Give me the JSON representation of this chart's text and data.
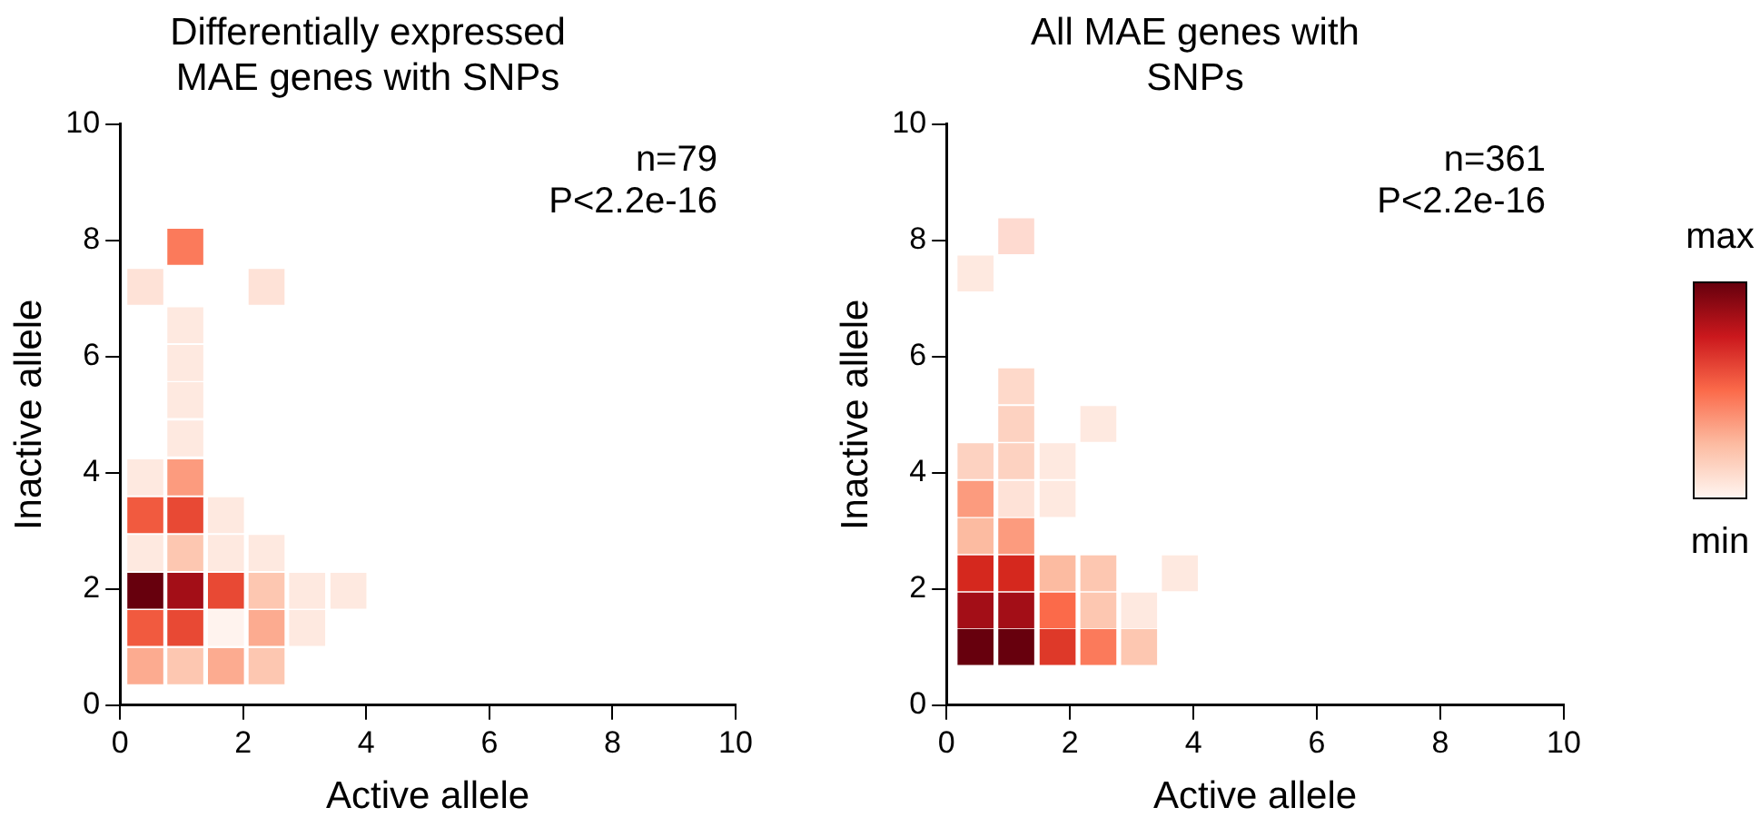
{
  "chart_data": [
    {
      "type": "scatter",
      "title": "Differentially expressed\nMAE genes with SNPs",
      "xlabel": "Active allele",
      "ylabel": "Inactive allele",
      "marker": "square",
      "grid": false,
      "legend": false,
      "xlim": [
        0,
        10
      ],
      "ylim": [
        0,
        10
      ],
      "xticks": [
        0,
        2,
        4,
        6,
        8,
        10
      ],
      "yticks": [
        0,
        2,
        4,
        6,
        8,
        10
      ],
      "annotations": [
        "n=79",
        "P<2.2e-16"
      ],
      "x": [
        0.41,
        1.06,
        1.72,
        2.38,
        0.41,
        1.06,
        1.72,
        2.38,
        3.04,
        0.41,
        1.06,
        1.72,
        2.38,
        3.04,
        3.71,
        0.41,
        1.06,
        1.72,
        2.38,
        0.41,
        1.06,
        1.72,
        0.41,
        1.06,
        1.06,
        1.06,
        1.06,
        1.06,
        0.41,
        2.38,
        1.06
      ],
      "values": [
        0.67,
        0.67,
        0.67,
        0.67,
        1.33,
        1.33,
        1.33,
        1.33,
        1.33,
        1.97,
        1.97,
        1.97,
        1.97,
        1.97,
        1.97,
        2.62,
        2.62,
        2.62,
        2.62,
        3.27,
        3.27,
        3.27,
        3.92,
        3.92,
        4.59,
        5.25,
        5.89,
        6.54,
        7.2,
        7.2,
        7.89
      ],
      "colors": [
        "#fcab90",
        "#fdc7b1",
        "#fcab90",
        "#fdc7b1",
        "#f15a3f",
        "#e84934",
        "#fff3ee",
        "#fcab90",
        "#fee9e0",
        "#67000d",
        "#a30e17",
        "#e84934",
        "#fdc7b1",
        "#fee9e0",
        "#fee9e0",
        "#fee9e0",
        "#fdc7b1",
        "#fee9e0",
        "#fee9e0",
        "#f15a3f",
        "#e84934",
        "#fee9e0",
        "#fee9e0",
        "#fc9b7e",
        "#fee9e0",
        "#fee9e0",
        "#fee9e0",
        "#fee9e0",
        "#fee2d7",
        "#fee2d7",
        "#fb7a5b"
      ]
    },
    {
      "type": "scatter",
      "title": "All MAE genes with\nSNPs",
      "xlabel": "Active allele",
      "ylabel": "Inactive allele",
      "marker": "square",
      "grid": false,
      "legend": false,
      "xlim": [
        0,
        10
      ],
      "ylim": [
        0,
        10
      ],
      "xticks": [
        0,
        2,
        4,
        6,
        8,
        10
      ],
      "yticks": [
        0,
        2,
        4,
        6,
        8,
        10
      ],
      "annotations": [
        "n=361",
        "P<2.2e-16",
        "max",
        "min"
      ],
      "x": [
        0.47,
        1.13,
        1.8,
        2.46,
        3.12,
        0.47,
        1.13,
        1.8,
        2.46,
        3.12,
        0.47,
        1.13,
        1.8,
        2.46,
        3.78,
        0.47,
        1.13,
        0.47,
        1.13,
        1.8,
        0.47,
        1.13,
        1.8,
        1.13,
        2.46,
        1.13,
        0.47,
        1.13
      ],
      "values": [
        1.0,
        1.0,
        1.0,
        1.0,
        1.0,
        1.63,
        1.63,
        1.63,
        1.63,
        1.63,
        2.27,
        2.27,
        2.27,
        2.27,
        2.27,
        2.91,
        2.91,
        3.55,
        3.55,
        3.55,
        4.2,
        4.2,
        4.2,
        4.84,
        4.84,
        5.49,
        7.43,
        8.07
      ],
      "colors": [
        "#67000d",
        "#67000d",
        "#de3929",
        "#fb7a5b",
        "#fdc7b1",
        "#a30e17",
        "#a30e17",
        "#fb6a4a",
        "#fdc7b1",
        "#fee9e0",
        "#d5281e",
        "#d5281e",
        "#fcbba1",
        "#fdc7b1",
        "#fee9e0",
        "#fcbba1",
        "#fc9b7e",
        "#fc9b7e",
        "#fee2d7",
        "#fee9e0",
        "#fdd2c1",
        "#fdd2c1",
        "#fee9e0",
        "#fdd2c1",
        "#fee9e0",
        "#fed9ca",
        "#fee9e0",
        "#fedad0"
      ]
    }
  ]
}
